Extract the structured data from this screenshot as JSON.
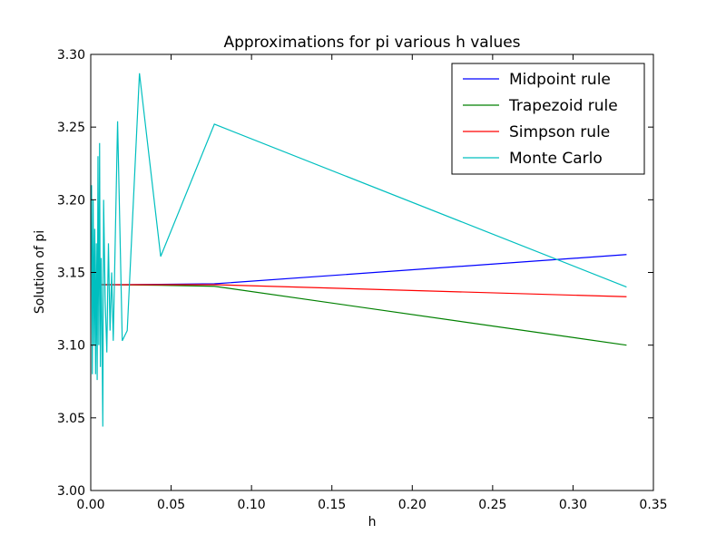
{
  "chart_data": {
    "type": "line",
    "title": "Approximations for pi various h values",
    "xlabel": "h",
    "ylabel": "Solution of pi",
    "xlim": [
      0.0,
      0.35
    ],
    "ylim": [
      3.0,
      3.3
    ],
    "xticks": [
      "0.00",
      "0.05",
      "0.10",
      "0.15",
      "0.20",
      "0.25",
      "0.30",
      "0.35"
    ],
    "yticks": [
      "3.00",
      "3.05",
      "3.10",
      "3.15",
      "3.20",
      "3.25",
      "3.30"
    ],
    "grid": false,
    "legend_position": "top-right",
    "series": [
      {
        "name": "Midpoint rule",
        "color": "#0000ff",
        "x": [
          0.001,
          0.005,
          0.01,
          0.02,
          0.0435,
          0.0769,
          0.3333
        ],
        "y": [
          3.1416,
          3.1416,
          3.1416,
          3.1416,
          3.1418,
          3.1422,
          3.1623
        ]
      },
      {
        "name": "Trapezoid rule",
        "color": "#008000",
        "x": [
          0.001,
          0.005,
          0.01,
          0.02,
          0.0435,
          0.0769,
          0.3333
        ],
        "y": [
          3.1416,
          3.1416,
          3.1416,
          3.1415,
          3.1412,
          3.1405,
          3.1
        ]
      },
      {
        "name": "Simpson rule",
        "color": "#ff0000",
        "x": [
          0.001,
          0.005,
          0.01,
          0.02,
          0.0435,
          0.0769,
          0.3333
        ],
        "y": [
          3.1416,
          3.1416,
          3.1416,
          3.1416,
          3.1416,
          3.1416,
          3.1333
        ]
      },
      {
        "name": "Monte Carlo",
        "color": "#00bfbf",
        "x": [
          0.0005,
          0.001,
          0.0015,
          0.002,
          0.0025,
          0.003,
          0.0035,
          0.004,
          0.0045,
          0.005,
          0.0055,
          0.006,
          0.0065,
          0.007,
          0.0075,
          0.008,
          0.009,
          0.01,
          0.011,
          0.012,
          0.013,
          0.014,
          0.0167,
          0.0196,
          0.0227,
          0.0303,
          0.0435,
          0.0769,
          0.3333
        ],
        "y": [
          3.21,
          3.08,
          3.2,
          3.1,
          3.18,
          3.08,
          3.17,
          3.076,
          3.23,
          3.1,
          3.239,
          3.085,
          3.16,
          3.11,
          3.044,
          3.2,
          3.13,
          3.095,
          3.17,
          3.11,
          3.15,
          3.103,
          3.254,
          3.103,
          3.11,
          3.287,
          3.161,
          3.252,
          3.14
        ]
      }
    ]
  }
}
